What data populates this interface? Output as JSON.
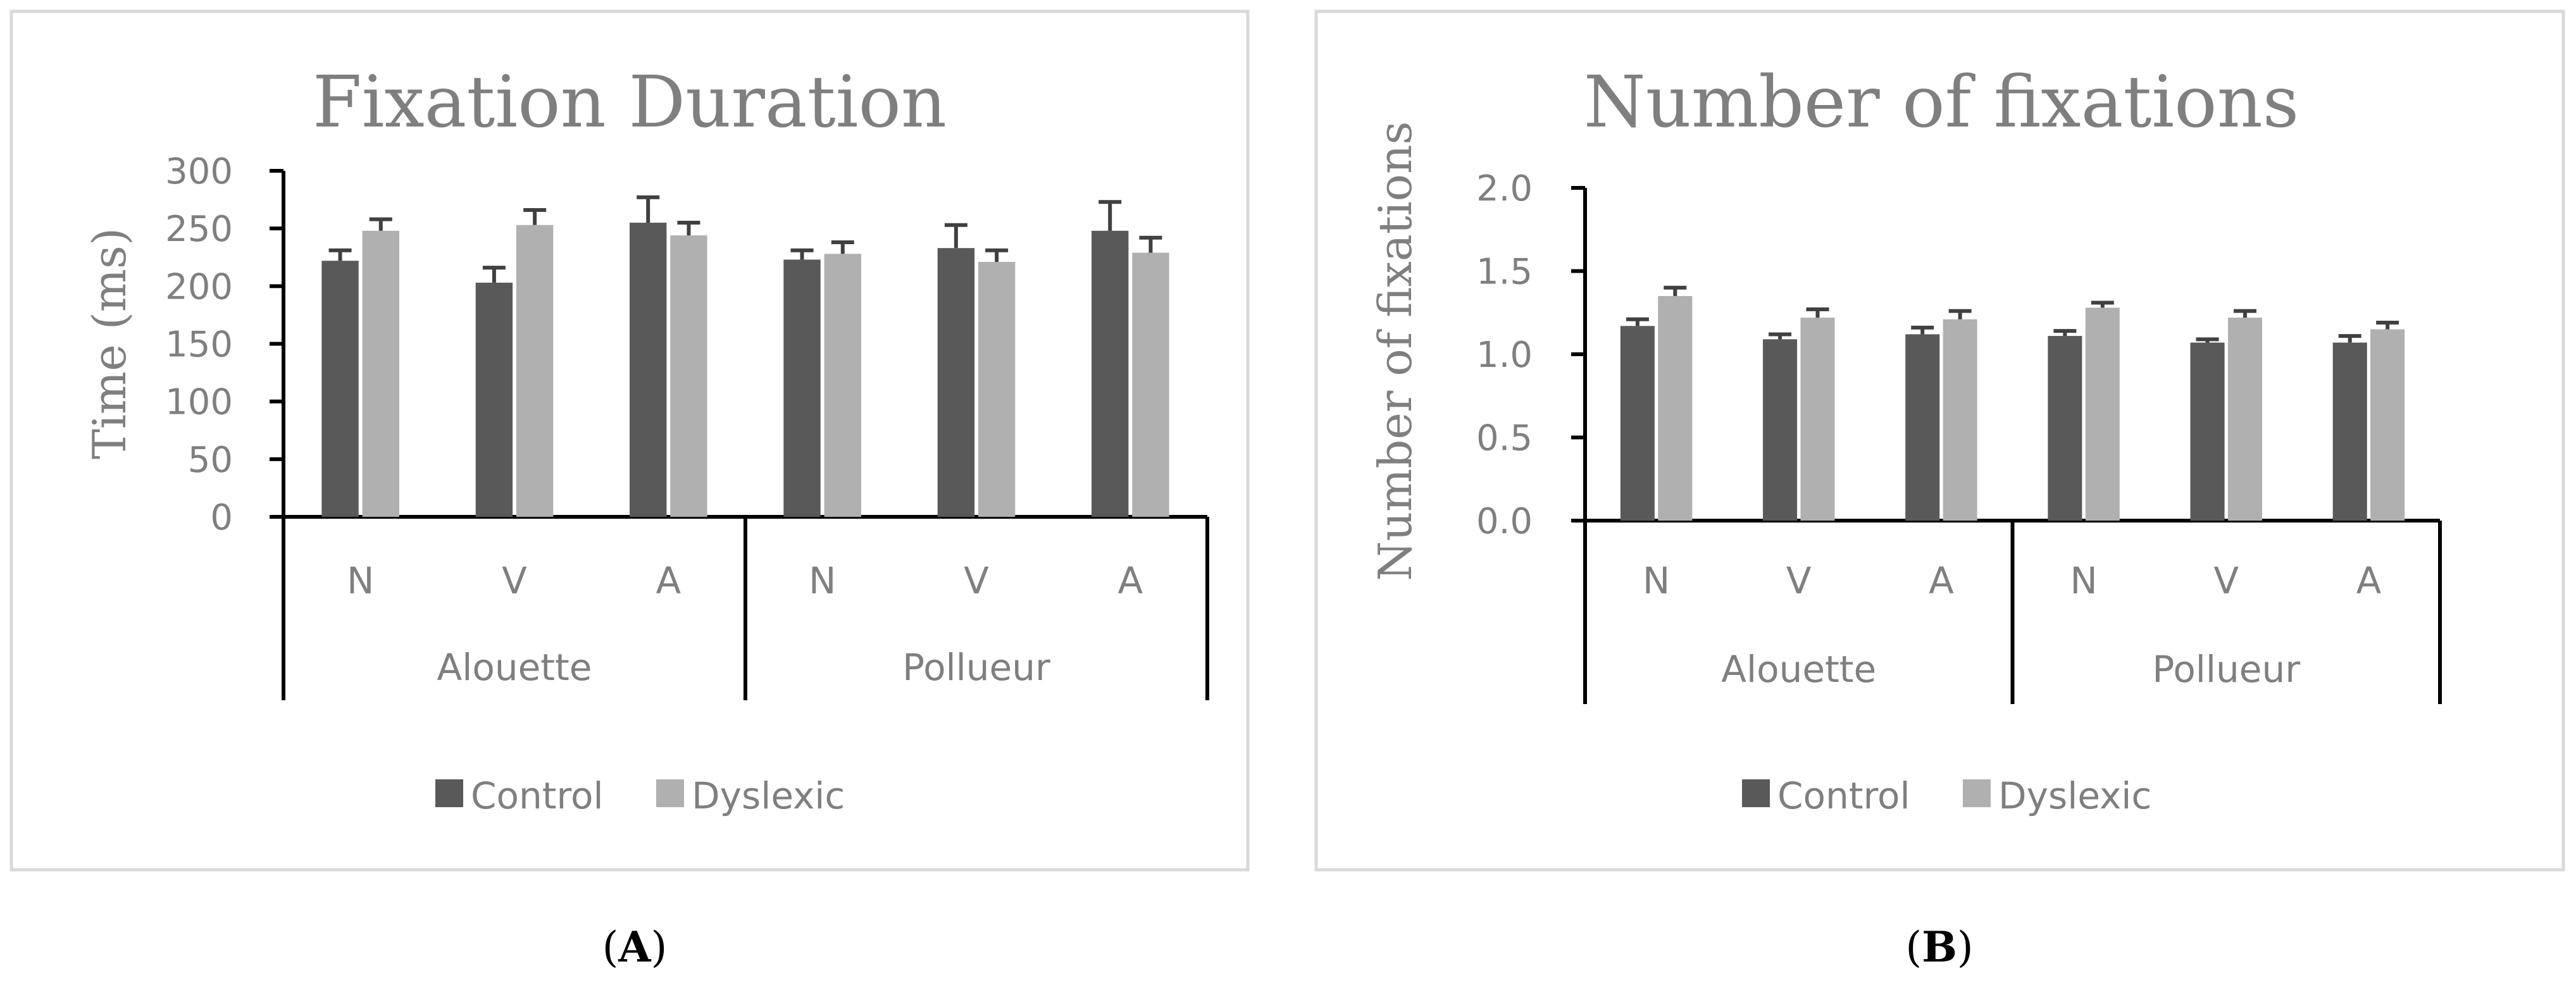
{
  "figure": {
    "panel_labels": [
      {
        "letter": "A"
      },
      {
        "letter": "B"
      }
    ]
  },
  "colors": {
    "control": "#595959",
    "dyslexic": "#b0b0b0",
    "text": "#7f7f7f",
    "frame": "#d9d9d9",
    "error_bar": "#404040"
  },
  "chart_data": [
    {
      "type": "bar",
      "title": "Fixation Duration",
      "ylabel": "Time (ms)",
      "xlabel": "",
      "ylim": [
        0,
        300
      ],
      "yticks": [
        0,
        50,
        100,
        150,
        200,
        250,
        300
      ],
      "ytick_labels": [
        "0",
        "50",
        "100",
        "150",
        "200",
        "250",
        "300"
      ],
      "categories": [
        "N",
        "V",
        "A",
        "N",
        "V",
        "A"
      ],
      "groups": [
        {
          "label": "Alouette",
          "span": [
            0,
            2
          ]
        },
        {
          "label": "Pollueur",
          "span": [
            3,
            5
          ]
        }
      ],
      "series": [
        {
          "name": "Control",
          "values": [
            222,
            203,
            255,
            223,
            233,
            248
          ],
          "errors": [
            9,
            13,
            22,
            8,
            20,
            25
          ]
        },
        {
          "name": "Dyslexic",
          "values": [
            248,
            253,
            244,
            228,
            221,
            229
          ],
          "errors": [
            10,
            13,
            11,
            10,
            10,
            13
          ]
        }
      ],
      "legend": "bottom"
    },
    {
      "type": "bar",
      "title": "Number of fixations",
      "ylabel": "Number of fixations",
      "xlabel": "",
      "ylim": [
        0,
        2
      ],
      "yticks": [
        0,
        0.5,
        1,
        1.5,
        2
      ],
      "ytick_labels": [
        "0.0",
        "0.5",
        "1.0",
        "1.5",
        "2.0"
      ],
      "categories": [
        "N",
        "V",
        "A",
        "N",
        "V",
        "A"
      ],
      "groups": [
        {
          "label": "Alouette",
          "span": [
            0,
            2
          ]
        },
        {
          "label": "Pollueur",
          "span": [
            3,
            5
          ]
        }
      ],
      "series": [
        {
          "name": "Control",
          "values": [
            1.17,
            1.09,
            1.12,
            1.11,
            1.07,
            1.07
          ],
          "errors": [
            0.04,
            0.03,
            0.04,
            0.03,
            0.02,
            0.04
          ]
        },
        {
          "name": "Dyslexic",
          "values": [
            1.35,
            1.22,
            1.21,
            1.28,
            1.22,
            1.15
          ],
          "errors": [
            0.05,
            0.05,
            0.05,
            0.03,
            0.04,
            0.04
          ]
        }
      ],
      "legend": "bottom"
    }
  ]
}
